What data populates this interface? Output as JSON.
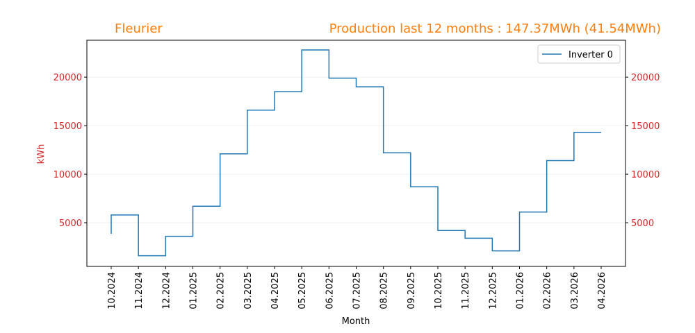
{
  "chart_data": {
    "type": "step",
    "title_left": "Fleurier",
    "title_right": "Production last 12 months : 147.37MWh (41.54MWh)",
    "x_label": "Month",
    "y_label": "kWh",
    "categories": [
      "10.2024",
      "11.2024",
      "12.2024",
      "01.2025",
      "02.2025",
      "03.2025",
      "04.2025",
      "05.2025",
      "06.2025",
      "07.2025",
      "08.2025",
      "09.2025",
      "10.2025",
      "11.2025",
      "12.2025",
      "01.2026",
      "02.2026",
      "03.2026",
      "04.2026"
    ],
    "series": [
      {
        "name": "Inverter 0",
        "color": "#1f77b4",
        "values": [
          3860,
          5800,
          1600,
          3600,
          6700,
          12100,
          16600,
          18500,
          22800,
          19900,
          19000,
          12200,
          8700,
          4200,
          3400,
          2100,
          6100,
          11400,
          14300
        ]
      }
    ],
    "ylim": [
      500,
      23800
    ],
    "yticks": [
      5000,
      10000,
      15000,
      20000
    ],
    "grid": true,
    "legend": "upper right"
  }
}
